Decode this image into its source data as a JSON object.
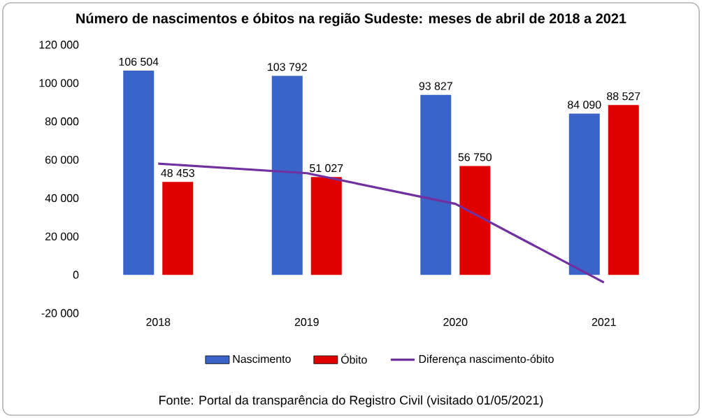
{
  "chart_data": {
    "type": "bar",
    "title": "Número de nascimentos e óbitos na região Sudeste: meses de abril de 2018 a 2021",
    "categories": [
      "2018",
      "2019",
      "2020",
      "2021"
    ],
    "series": [
      {
        "name": "Nascimento",
        "color": "#3a64c8",
        "values": [
          106504,
          103792,
          93827,
          84090
        ],
        "value_labels": [
          "106 504",
          "103 792",
          "93 827",
          "84 090"
        ]
      },
      {
        "name": "Óbito",
        "color": "#e00000",
        "values": [
          48453,
          51027,
          56750,
          88527
        ],
        "value_labels": [
          "48 453",
          "51 027",
          "56 750",
          "88 527"
        ]
      },
      {
        "name": "Diferença nascimento-óbito",
        "type": "line",
        "color": "#7030a0",
        "values": [
          58000,
          53000,
          37000,
          -4000
        ]
      }
    ],
    "ylim": [
      -20000,
      120000
    ],
    "yticks": [
      {
        "value": -20000,
        "label": "-20 000"
      },
      {
        "value": 0,
        "label": "0"
      },
      {
        "value": 20000,
        "label": "20 000"
      },
      {
        "value": 40000,
        "label": "40 000"
      },
      {
        "value": 60000,
        "label": "60 000"
      },
      {
        "value": 80000,
        "label": "80 000"
      },
      {
        "value": 100000,
        "label": "100 000"
      },
      {
        "value": 120000,
        "label": "120 000"
      }
    ],
    "legend": "bottom",
    "annotations": [
      "Fonte: Portal da transparência do Registro Civil (visitado 01/05/2021)"
    ]
  }
}
